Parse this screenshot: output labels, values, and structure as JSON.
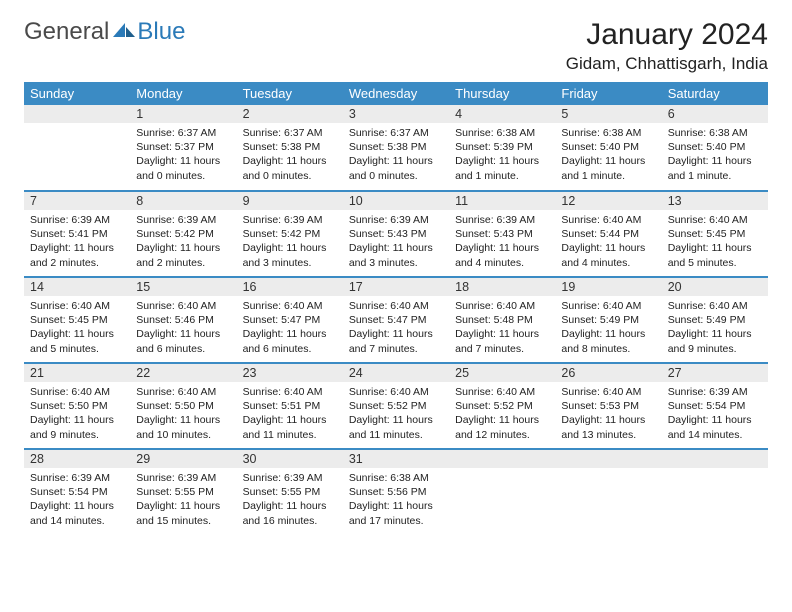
{
  "logo": {
    "part1": "General",
    "part2": "Blue"
  },
  "title": "January 2024",
  "location": "Gidam, Chhattisgarh, India",
  "colors": {
    "header_bg": "#3b8bc4",
    "header_text": "#ffffff",
    "daynum_bg": "#ececec",
    "row_divider": "#3b8bc4",
    "logo_gray": "#4a4a4a",
    "logo_blue": "#2a7ab8",
    "body_text": "#222222",
    "page_bg": "#ffffff"
  },
  "fonts": {
    "title_size": 30,
    "location_size": 17,
    "weekday_size": 13,
    "daynum_size": 12.5,
    "body_size": 10.5
  },
  "weekdays": [
    "Sunday",
    "Monday",
    "Tuesday",
    "Wednesday",
    "Thursday",
    "Friday",
    "Saturday"
  ],
  "weeks": [
    [
      {
        "day": "",
        "sunrise": "",
        "sunset": "",
        "daylight": ""
      },
      {
        "day": "1",
        "sunrise": "Sunrise: 6:37 AM",
        "sunset": "Sunset: 5:37 PM",
        "daylight": "Daylight: 11 hours and 0 minutes."
      },
      {
        "day": "2",
        "sunrise": "Sunrise: 6:37 AM",
        "sunset": "Sunset: 5:38 PM",
        "daylight": "Daylight: 11 hours and 0 minutes."
      },
      {
        "day": "3",
        "sunrise": "Sunrise: 6:37 AM",
        "sunset": "Sunset: 5:38 PM",
        "daylight": "Daylight: 11 hours and 0 minutes."
      },
      {
        "day": "4",
        "sunrise": "Sunrise: 6:38 AM",
        "sunset": "Sunset: 5:39 PM",
        "daylight": "Daylight: 11 hours and 1 minute."
      },
      {
        "day": "5",
        "sunrise": "Sunrise: 6:38 AM",
        "sunset": "Sunset: 5:40 PM",
        "daylight": "Daylight: 11 hours and 1 minute."
      },
      {
        "day": "6",
        "sunrise": "Sunrise: 6:38 AM",
        "sunset": "Sunset: 5:40 PM",
        "daylight": "Daylight: 11 hours and 1 minute."
      }
    ],
    [
      {
        "day": "7",
        "sunrise": "Sunrise: 6:39 AM",
        "sunset": "Sunset: 5:41 PM",
        "daylight": "Daylight: 11 hours and 2 minutes."
      },
      {
        "day": "8",
        "sunrise": "Sunrise: 6:39 AM",
        "sunset": "Sunset: 5:42 PM",
        "daylight": "Daylight: 11 hours and 2 minutes."
      },
      {
        "day": "9",
        "sunrise": "Sunrise: 6:39 AM",
        "sunset": "Sunset: 5:42 PM",
        "daylight": "Daylight: 11 hours and 3 minutes."
      },
      {
        "day": "10",
        "sunrise": "Sunrise: 6:39 AM",
        "sunset": "Sunset: 5:43 PM",
        "daylight": "Daylight: 11 hours and 3 minutes."
      },
      {
        "day": "11",
        "sunrise": "Sunrise: 6:39 AM",
        "sunset": "Sunset: 5:43 PM",
        "daylight": "Daylight: 11 hours and 4 minutes."
      },
      {
        "day": "12",
        "sunrise": "Sunrise: 6:40 AM",
        "sunset": "Sunset: 5:44 PM",
        "daylight": "Daylight: 11 hours and 4 minutes."
      },
      {
        "day": "13",
        "sunrise": "Sunrise: 6:40 AM",
        "sunset": "Sunset: 5:45 PM",
        "daylight": "Daylight: 11 hours and 5 minutes."
      }
    ],
    [
      {
        "day": "14",
        "sunrise": "Sunrise: 6:40 AM",
        "sunset": "Sunset: 5:45 PM",
        "daylight": "Daylight: 11 hours and 5 minutes."
      },
      {
        "day": "15",
        "sunrise": "Sunrise: 6:40 AM",
        "sunset": "Sunset: 5:46 PM",
        "daylight": "Daylight: 11 hours and 6 minutes."
      },
      {
        "day": "16",
        "sunrise": "Sunrise: 6:40 AM",
        "sunset": "Sunset: 5:47 PM",
        "daylight": "Daylight: 11 hours and 6 minutes."
      },
      {
        "day": "17",
        "sunrise": "Sunrise: 6:40 AM",
        "sunset": "Sunset: 5:47 PM",
        "daylight": "Daylight: 11 hours and 7 minutes."
      },
      {
        "day": "18",
        "sunrise": "Sunrise: 6:40 AM",
        "sunset": "Sunset: 5:48 PM",
        "daylight": "Daylight: 11 hours and 7 minutes."
      },
      {
        "day": "19",
        "sunrise": "Sunrise: 6:40 AM",
        "sunset": "Sunset: 5:49 PM",
        "daylight": "Daylight: 11 hours and 8 minutes."
      },
      {
        "day": "20",
        "sunrise": "Sunrise: 6:40 AM",
        "sunset": "Sunset: 5:49 PM",
        "daylight": "Daylight: 11 hours and 9 minutes."
      }
    ],
    [
      {
        "day": "21",
        "sunrise": "Sunrise: 6:40 AM",
        "sunset": "Sunset: 5:50 PM",
        "daylight": "Daylight: 11 hours and 9 minutes."
      },
      {
        "day": "22",
        "sunrise": "Sunrise: 6:40 AM",
        "sunset": "Sunset: 5:50 PM",
        "daylight": "Daylight: 11 hours and 10 minutes."
      },
      {
        "day": "23",
        "sunrise": "Sunrise: 6:40 AM",
        "sunset": "Sunset: 5:51 PM",
        "daylight": "Daylight: 11 hours and 11 minutes."
      },
      {
        "day": "24",
        "sunrise": "Sunrise: 6:40 AM",
        "sunset": "Sunset: 5:52 PM",
        "daylight": "Daylight: 11 hours and 11 minutes."
      },
      {
        "day": "25",
        "sunrise": "Sunrise: 6:40 AM",
        "sunset": "Sunset: 5:52 PM",
        "daylight": "Daylight: 11 hours and 12 minutes."
      },
      {
        "day": "26",
        "sunrise": "Sunrise: 6:40 AM",
        "sunset": "Sunset: 5:53 PM",
        "daylight": "Daylight: 11 hours and 13 minutes."
      },
      {
        "day": "27",
        "sunrise": "Sunrise: 6:39 AM",
        "sunset": "Sunset: 5:54 PM",
        "daylight": "Daylight: 11 hours and 14 minutes."
      }
    ],
    [
      {
        "day": "28",
        "sunrise": "Sunrise: 6:39 AM",
        "sunset": "Sunset: 5:54 PM",
        "daylight": "Daylight: 11 hours and 14 minutes."
      },
      {
        "day": "29",
        "sunrise": "Sunrise: 6:39 AM",
        "sunset": "Sunset: 5:55 PM",
        "daylight": "Daylight: 11 hours and 15 minutes."
      },
      {
        "day": "30",
        "sunrise": "Sunrise: 6:39 AM",
        "sunset": "Sunset: 5:55 PM",
        "daylight": "Daylight: 11 hours and 16 minutes."
      },
      {
        "day": "31",
        "sunrise": "Sunrise: 6:38 AM",
        "sunset": "Sunset: 5:56 PM",
        "daylight": "Daylight: 11 hours and 17 minutes."
      },
      {
        "day": "",
        "sunrise": "",
        "sunset": "",
        "daylight": ""
      },
      {
        "day": "",
        "sunrise": "",
        "sunset": "",
        "daylight": ""
      },
      {
        "day": "",
        "sunrise": "",
        "sunset": "",
        "daylight": ""
      }
    ]
  ]
}
